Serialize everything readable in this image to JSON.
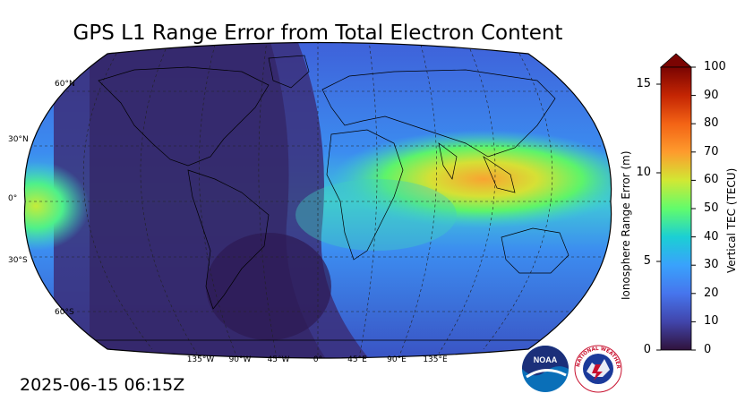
{
  "title": "GPS L1 Range Error from Total Electron Content",
  "timestamp": "2025-06-15 06:15Z",
  "map": {
    "projection": "Robinson",
    "lat_labels": [
      "60°N",
      "30°N",
      "0°",
      "30°S",
      "60°S"
    ],
    "lon_labels": [
      "135°W",
      "90°W",
      "45°W",
      "0°",
      "45°E",
      "90°E",
      "135°E"
    ]
  },
  "colorbar": {
    "left_label": "Ionosphere Range Error (m)",
    "right_label": "Vertical TEC (TECU)",
    "left_ticks": [
      "0",
      "5",
      "10",
      "15"
    ],
    "right_ticks": [
      "0",
      "10",
      "20",
      "30",
      "40",
      "50",
      "60",
      "70",
      "80",
      "90",
      "100"
    ],
    "extend": "max",
    "colors": [
      "#30123b",
      "#4145ab",
      "#4675ed",
      "#39a2fc",
      "#1bcfd4",
      "#24eca6",
      "#61fc6c",
      "#a4fc3b",
      "#d1e834",
      "#f3c63a",
      "#fe9b2d",
      "#f36315",
      "#d93806",
      "#b11901",
      "#7a0402"
    ]
  },
  "logos": {
    "noaa_text": "NOAA",
    "nws_text": "NATIONAL WEATHER SERVICE"
  }
}
